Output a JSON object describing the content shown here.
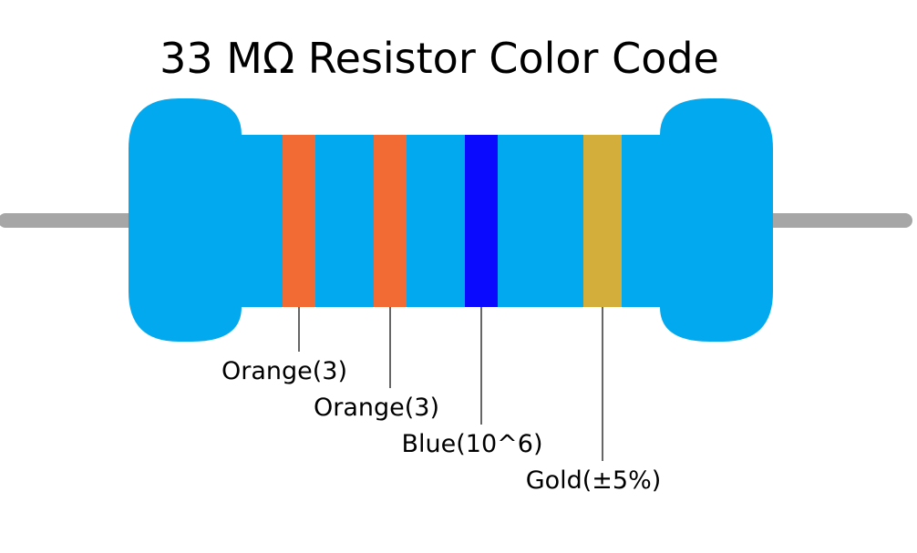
{
  "title": "33 MΩ Resistor Color Code",
  "colors": {
    "body": "#03a9ee",
    "lead": "#a6a6a6",
    "leader_line": "#000000"
  },
  "bands": [
    {
      "name": "orange",
      "color": "#f26b34",
      "label": "Orange(3)"
    },
    {
      "name": "orange",
      "color": "#f26b34",
      "label": "Orange(3)"
    },
    {
      "name": "blue",
      "color": "#0a0aff",
      "label": "Blue(10^6)"
    },
    {
      "name": "gold",
      "color": "#d4ae3a",
      "label": "Gold(±5%)"
    }
  ]
}
